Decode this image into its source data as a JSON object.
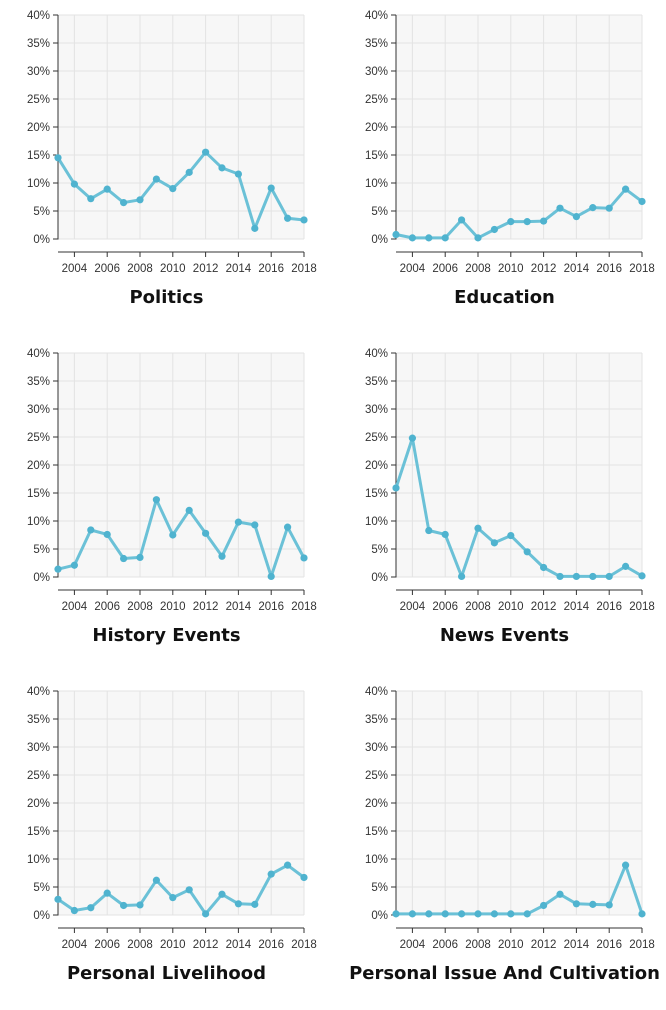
{
  "chart_data": [
    {
      "type": "line",
      "title": "Politics",
      "x": [
        2003,
        2004,
        2005,
        2006,
        2007,
        2008,
        2009,
        2010,
        2011,
        2012,
        2013,
        2014,
        2015,
        2016,
        2017,
        2018
      ],
      "y": [
        14.5,
        9.8,
        7.2,
        8.9,
        6.5,
        7.0,
        10.7,
        9.0,
        11.9,
        15.5,
        12.7,
        11.6,
        1.9,
        9.1,
        3.7,
        3.4
      ],
      "x_ticks": [
        "2004",
        "2006",
        "2008",
        "2010",
        "2012",
        "2014",
        "2016",
        "2018"
      ],
      "y_ticks": [
        "0%",
        "5%",
        "10%",
        "15%",
        "20%",
        "25%",
        "30%",
        "35%",
        "40%"
      ],
      "ylim": [
        0,
        40
      ],
      "grid": true
    },
    {
      "type": "line",
      "title": "Education",
      "x": [
        2003,
        2004,
        2005,
        2006,
        2007,
        2008,
        2009,
        2010,
        2011,
        2012,
        2013,
        2014,
        2015,
        2016,
        2017,
        2018
      ],
      "y": [
        0.8,
        0.2,
        0.2,
        0.2,
        3.4,
        0.2,
        1.7,
        3.1,
        3.1,
        3.2,
        5.5,
        4.0,
        5.6,
        5.5,
        8.9,
        6.7
      ],
      "x_ticks": [
        "2004",
        "2006",
        "2008",
        "2010",
        "2012",
        "2014",
        "2016",
        "2018"
      ],
      "y_ticks": [
        "0%",
        "5%",
        "10%",
        "15%",
        "20%",
        "25%",
        "30%",
        "35%",
        "40%"
      ],
      "ylim": [
        0,
        40
      ],
      "grid": true
    },
    {
      "type": "line",
      "title": "History Events",
      "x": [
        2003,
        2004,
        2005,
        2006,
        2007,
        2008,
        2009,
        2010,
        2011,
        2012,
        2013,
        2014,
        2015,
        2016,
        2017,
        2018
      ],
      "y": [
        1.4,
        2.1,
        8.4,
        7.6,
        3.3,
        3.5,
        13.8,
        7.5,
        11.9,
        7.8,
        3.7,
        9.8,
        9.3,
        0.1,
        8.9,
        3.4
      ],
      "x_ticks": [
        "2004",
        "2006",
        "2008",
        "2010",
        "2012",
        "2014",
        "2016",
        "2018"
      ],
      "y_ticks": [
        "0%",
        "5%",
        "10%",
        "15%",
        "20%",
        "25%",
        "30%",
        "35%",
        "40%"
      ],
      "ylim": [
        0,
        40
      ],
      "grid": true
    },
    {
      "type": "line",
      "title": "News Events",
      "x": [
        2003,
        2004,
        2005,
        2006,
        2007,
        2008,
        2009,
        2010,
        2011,
        2012,
        2013,
        2014,
        2015,
        2016,
        2017,
        2018
      ],
      "y": [
        15.9,
        24.8,
        8.3,
        7.6,
        0.1,
        8.7,
        6.1,
        7.4,
        4.5,
        1.7,
        0.1,
        0.1,
        0.1,
        0.1,
        1.9,
        0.2
      ],
      "x_ticks": [
        "2004",
        "2006",
        "2008",
        "2010",
        "2012",
        "2014",
        "2016",
        "2018"
      ],
      "y_ticks": [
        "0%",
        "5%",
        "10%",
        "15%",
        "20%",
        "25%",
        "30%",
        "35%",
        "40%"
      ],
      "ylim": [
        0,
        40
      ],
      "grid": true
    },
    {
      "type": "line",
      "title": "Personal Livelihood",
      "x": [
        2003,
        2004,
        2005,
        2006,
        2007,
        2008,
        2009,
        2010,
        2011,
        2012,
        2013,
        2014,
        2015,
        2016,
        2017,
        2018
      ],
      "y": [
        2.8,
        0.8,
        1.3,
        3.9,
        1.7,
        1.8,
        6.2,
        3.1,
        4.5,
        0.2,
        3.7,
        2.0,
        1.9,
        7.3,
        8.9,
        6.7
      ],
      "x_ticks": [
        "2004",
        "2006",
        "2008",
        "2010",
        "2012",
        "2014",
        "2016",
        "2018"
      ],
      "y_ticks": [
        "0%",
        "5%",
        "10%",
        "15%",
        "20%",
        "25%",
        "30%",
        "35%",
        "40%"
      ],
      "ylim": [
        0,
        40
      ],
      "grid": true
    },
    {
      "type": "line",
      "title": "Personal Issue And Cultivation",
      "x": [
        2003,
        2004,
        2005,
        2006,
        2007,
        2008,
        2009,
        2010,
        2011,
        2012,
        2013,
        2014,
        2015,
        2016,
        2017,
        2018
      ],
      "y": [
        0.2,
        0.2,
        0.2,
        0.2,
        0.2,
        0.2,
        0.2,
        0.2,
        0.2,
        1.7,
        3.7,
        2.0,
        1.9,
        1.8,
        8.9,
        0.2
      ],
      "x_ticks": [
        "2004",
        "2006",
        "2008",
        "2010",
        "2012",
        "2014",
        "2016",
        "2018"
      ],
      "y_ticks": [
        "0%",
        "5%",
        "10%",
        "15%",
        "20%",
        "25%",
        "30%",
        "35%",
        "40%"
      ],
      "ylim": [
        0,
        40
      ],
      "grid": true
    }
  ],
  "style": {
    "line_color": "#6bc1d7",
    "point_color": "#4fb3cf",
    "plot_background": "#f7f7f7",
    "grid_color": "#e3e3e3"
  }
}
